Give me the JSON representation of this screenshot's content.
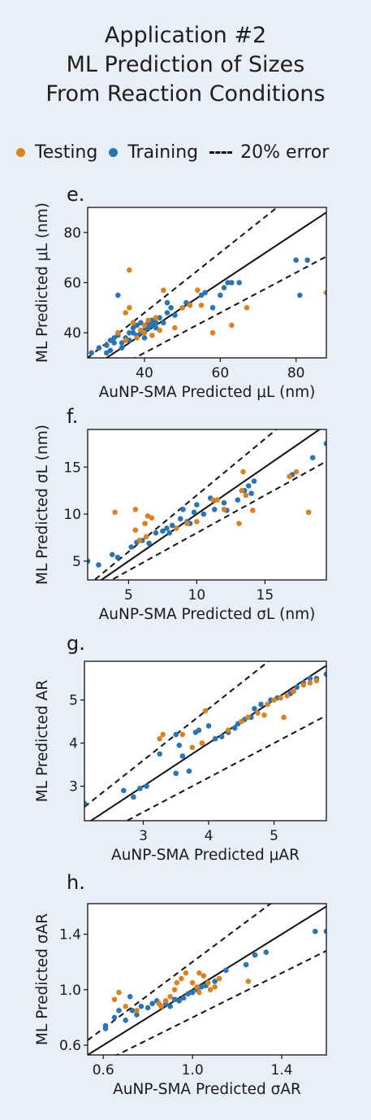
{
  "title": {
    "line1": "Application #2",
    "line2": "ML Prediction of Sizes",
    "line3": "From Reaction Conditions"
  },
  "legend": {
    "testing": "Testing",
    "training": "Training",
    "error": "20% error"
  },
  "colors": {
    "testing": "#d9821e",
    "training": "#2a74b4",
    "background": "#e8eff7"
  },
  "chart_data": [
    {
      "type": "scatter",
      "panel_label": "e.",
      "xlabel": "AuNP-SMA Predicted μL (nm)",
      "ylabel": "ML Predicted μL (nm)",
      "xlim": [
        25,
        88
      ],
      "ylim": [
        30,
        90
      ],
      "xticks": [
        40,
        60,
        80
      ],
      "yticks": [
        40,
        60,
        80
      ],
      "tick_labels_x": [
        "40",
        "60",
        "80"
      ],
      "tick_labels_y": [
        "40",
        "60",
        "80"
      ],
      "series": [
        {
          "name": "Testing",
          "points": [
            [
              36,
              65
            ],
            [
              35,
              48
            ],
            [
              36,
              50
            ],
            [
              37,
              44
            ],
            [
              33,
              40
            ],
            [
              35,
              37
            ],
            [
              38,
              38
            ],
            [
              39,
              41
            ],
            [
              40,
              40
            ],
            [
              40,
              43
            ],
            [
              41,
              45
            ],
            [
              42,
              39
            ],
            [
              44,
              41
            ],
            [
              45,
              57
            ],
            [
              48,
              42
            ],
            [
              50,
              50
            ],
            [
              52,
              51
            ],
            [
              54,
              57
            ],
            [
              55,
              51
            ],
            [
              58,
              40
            ],
            [
              63,
              43
            ],
            [
              67,
              50
            ],
            [
              88,
              56
            ],
            [
              43,
              46
            ]
          ]
        },
        {
          "name": "Training",
          "points": [
            [
              33,
              55
            ],
            [
              25,
              28
            ],
            [
              26,
              32
            ],
            [
              28,
              34
            ],
            [
              30,
              35
            ],
            [
              31,
              37
            ],
            [
              32,
              36
            ],
            [
              32,
              38
            ],
            [
              33,
              39
            ],
            [
              34,
              36
            ],
            [
              34,
              34
            ],
            [
              35,
              38
            ],
            [
              36,
              40
            ],
            [
              36,
              37
            ],
            [
              37,
              40
            ],
            [
              37,
              42
            ],
            [
              38,
              39
            ],
            [
              38,
              43
            ],
            [
              39,
              40
            ],
            [
              39,
              44
            ],
            [
              40,
              41
            ],
            [
              40,
              38
            ],
            [
              41,
              44
            ],
            [
              41,
              42
            ],
            [
              42,
              43
            ],
            [
              42,
              45
            ],
            [
              43,
              44
            ],
            [
              43,
              42
            ],
            [
              44,
              46
            ],
            [
              45,
              44
            ],
            [
              46,
              48
            ],
            [
              46,
              52
            ],
            [
              47,
              50
            ],
            [
              48,
              47
            ],
            [
              50,
              50
            ],
            [
              51,
              52
            ],
            [
              55,
              55
            ],
            [
              56,
              56
            ],
            [
              58,
              50
            ],
            [
              60,
              55
            ],
            [
              61,
              58
            ],
            [
              62,
              60
            ],
            [
              63,
              60
            ],
            [
              65,
              60
            ],
            [
              80,
              69
            ],
            [
              81,
              55
            ],
            [
              83,
              69
            ],
            [
              30,
              32
            ],
            [
              31,
              33
            ]
          ]
        }
      ],
      "lines": [
        "y=x",
        "y=1.2x",
        "y=0.8x"
      ]
    },
    {
      "type": "scatter",
      "panel_label": "f.",
      "xlabel": "AuNP-SMA Predicted σL (nm)",
      "ylabel": "ML Predicted σL (nm)",
      "xlim": [
        2,
        19.5
      ],
      "ylim": [
        3,
        19
      ],
      "xticks": [
        5,
        10,
        15
      ],
      "yticks": [
        5,
        10,
        15
      ],
      "tick_labels_x": [
        "5",
        "10",
        "15"
      ],
      "tick_labels_y": [
        "5",
        "10",
        "15"
      ],
      "series": [
        {
          "name": "Testing",
          "points": [
            [
              4,
              10.2
            ],
            [
              5.5,
              8.3
            ],
            [
              5.5,
              10.5
            ],
            [
              5.8,
              7.2
            ],
            [
              6.2,
              9.0
            ],
            [
              6.4,
              9.8
            ],
            [
              6.7,
              9.6
            ],
            [
              6.3,
              7.6
            ],
            [
              8.5,
              8.5
            ],
            [
              9.3,
              9.0
            ],
            [
              10.0,
              9.2
            ],
            [
              11.2,
              11.5
            ],
            [
              11.5,
              11.5
            ],
            [
              12.0,
              10.5
            ],
            [
              13.1,
              9.0
            ],
            [
              13.3,
              12.5
            ],
            [
              13.4,
              14.5
            ],
            [
              13.6,
              12.0
            ],
            [
              14.1,
              10.4
            ],
            [
              16.8,
              14.0
            ],
            [
              17.3,
              14.5
            ],
            [
              18.2,
              10.2
            ]
          ]
        },
        {
          "name": "Training",
          "points": [
            [
              2.0,
              5.0
            ],
            [
              2.8,
              4.6
            ],
            [
              3.8,
              5.7
            ],
            [
              4.2,
              5.4
            ],
            [
              5.2,
              6.5
            ],
            [
              5.6,
              7.0
            ],
            [
              6.0,
              7.2
            ],
            [
              6.5,
              6.9
            ],
            [
              7.0,
              8.0
            ],
            [
              7.5,
              8.2
            ],
            [
              7.8,
              8.5
            ],
            [
              8.0,
              8.0
            ],
            [
              8.2,
              8.8
            ],
            [
              8.8,
              9.5
            ],
            [
              9.0,
              10.5
            ],
            [
              9.3,
              9.2
            ],
            [
              9.5,
              9.0
            ],
            [
              9.8,
              10.2
            ],
            [
              10.0,
              11.0
            ],
            [
              10.5,
              10.0
            ],
            [
              11.0,
              11.7
            ],
            [
              11.3,
              10.5
            ],
            [
              12.0,
              11.2
            ],
            [
              12.2,
              10.4
            ],
            [
              13.0,
              11.5
            ],
            [
              13.5,
              12.5
            ],
            [
              13.8,
              13.0
            ],
            [
              14.0,
              12.2
            ],
            [
              14.2,
              13.5
            ],
            [
              17.0,
              14.2
            ],
            [
              18.5,
              16.0
            ],
            [
              19.5,
              17.5
            ]
          ]
        }
      ],
      "lines": [
        "y=x",
        "y=1.2x",
        "y=0.8x"
      ]
    },
    {
      "type": "scatter",
      "panel_label": "g.",
      "xlabel": "AuNP-SMA Predicted μAR",
      "ylabel": "ML Predicted AR",
      "xlim": [
        2.1,
        5.8
      ],
      "ylim": [
        2.2,
        5.9
      ],
      "xticks": [
        3,
        4,
        5
      ],
      "yticks": [
        3,
        4,
        5
      ],
      "tick_labels_x": [
        "3",
        "4",
        "5"
      ],
      "tick_labels_y": [
        "3",
        "4",
        "5"
      ],
      "series": [
        {
          "name": "Testing",
          "points": [
            [
              3.25,
              4.1
            ],
            [
              3.3,
              4.2
            ],
            [
              3.6,
              4.2
            ],
            [
              3.75,
              3.9
            ],
            [
              3.9,
              4.0
            ],
            [
              3.95,
              4.75
            ],
            [
              4.3,
              4.3
            ],
            [
              4.5,
              4.5
            ],
            [
              4.6,
              4.6
            ],
            [
              4.75,
              4.7
            ],
            [
              4.85,
              4.65
            ],
            [
              4.9,
              4.9
            ],
            [
              5.0,
              5.0
            ],
            [
              5.1,
              5.05
            ],
            [
              5.15,
              4.6
            ],
            [
              5.2,
              5.1
            ],
            [
              5.3,
              5.2
            ],
            [
              5.45,
              5.35
            ],
            [
              5.55,
              5.4
            ],
            [
              5.65,
              5.45
            ]
          ]
        },
        {
          "name": "Training",
          "points": [
            [
              2.1,
              2.6
            ],
            [
              2.7,
              2.9
            ],
            [
              2.85,
              2.75
            ],
            [
              2.95,
              2.95
            ],
            [
              3.05,
              3.0
            ],
            [
              3.25,
              3.75
            ],
            [
              3.5,
              4.2
            ],
            [
              3.55,
              3.95
            ],
            [
              3.6,
              3.7
            ],
            [
              3.7,
              3.35
            ],
            [
              3.8,
              4.25
            ],
            [
              3.85,
              4.3
            ],
            [
              3.9,
              4.0
            ],
            [
              3.5,
              3.3
            ],
            [
              4.0,
              4.4
            ],
            [
              4.1,
              4.1
            ],
            [
              4.2,
              4.15
            ],
            [
              4.3,
              4.25
            ],
            [
              4.4,
              4.35
            ],
            [
              4.45,
              4.45
            ],
            [
              4.55,
              4.55
            ],
            [
              4.65,
              4.6
            ],
            [
              4.7,
              4.8
            ],
            [
              4.8,
              4.9
            ],
            [
              4.95,
              5.0
            ],
            [
              5.05,
              5.05
            ],
            [
              5.25,
              5.15
            ],
            [
              5.35,
              5.3
            ],
            [
              5.45,
              5.4
            ],
            [
              5.55,
              5.5
            ],
            [
              5.65,
              5.5
            ],
            [
              5.8,
              5.6
            ]
          ]
        }
      ],
      "lines": [
        "y=x",
        "y=1.2x",
        "y=0.8x"
      ]
    },
    {
      "type": "scatter",
      "panel_label": "h.",
      "xlabel": "AuNP-SMA Predicted σAR",
      "ylabel": "ML Predicted σAR",
      "xlim": [
        0.53,
        1.6
      ],
      "ylim": [
        0.53,
        1.62
      ],
      "xticks": [
        0.6,
        1.0,
        1.4
      ],
      "yticks": [
        0.6,
        1.0,
        1.4
      ],
      "tick_labels_x": [
        "0.6",
        "1.0",
        "1.4"
      ],
      "tick_labels_y": [
        "0.6",
        "1.0",
        "1.4"
      ],
      "series": [
        {
          "name": "Testing",
          "points": [
            [
              0.65,
              0.93
            ],
            [
              0.67,
              0.98
            ],
            [
              0.7,
              0.88
            ],
            [
              0.75,
              0.85
            ],
            [
              0.85,
              0.9
            ],
            [
              0.86,
              0.88
            ],
            [
              0.9,
              0.95
            ],
            [
              0.92,
              1.0
            ],
            [
              0.93,
              1.05
            ],
            [
              0.95,
              1.08
            ],
            [
              0.97,
              1.12
            ],
            [
              1.0,
              1.05
            ],
            [
              1.02,
              1.02
            ],
            [
              1.03,
              1.12
            ],
            [
              1.05,
              1.1
            ],
            [
              1.07,
              1.05
            ],
            [
              1.08,
              1.0
            ],
            [
              1.1,
              1.02
            ],
            [
              1.12,
              1.08
            ],
            [
              1.25,
              1.06
            ],
            [
              1.03,
              0.98
            ],
            [
              0.88,
              0.92
            ]
          ]
        },
        {
          "name": "Training",
          "points": [
            [
              0.61,
              0.72
            ],
            [
              0.61,
              0.74
            ],
            [
              0.65,
              0.8
            ],
            [
              0.67,
              0.85
            ],
            [
              0.7,
              0.78
            ],
            [
              0.73,
              0.85
            ],
            [
              0.75,
              0.82
            ],
            [
              0.77,
              0.88
            ],
            [
              0.8,
              0.87
            ],
            [
              0.82,
              0.9
            ],
            [
              0.84,
              0.92
            ],
            [
              0.86,
              0.88
            ],
            [
              0.88,
              0.9
            ],
            [
              0.9,
              0.88
            ],
            [
              0.92,
              0.93
            ],
            [
              0.94,
              0.92
            ],
            [
              0.96,
              0.94
            ],
            [
              0.98,
              0.97
            ],
            [
              1.0,
              0.98
            ],
            [
              1.02,
              1.0
            ],
            [
              1.04,
              1.02
            ],
            [
              1.06,
              1.03
            ],
            [
              1.1,
              1.06
            ],
            [
              1.15,
              1.14
            ],
            [
              1.24,
              1.18
            ],
            [
              1.28,
              1.25
            ],
            [
              1.33,
              1.27
            ],
            [
              1.55,
              1.42
            ],
            [
              1.6,
              1.42
            ],
            [
              0.72,
              0.95
            ]
          ]
        }
      ],
      "lines": [
        "y=x",
        "y=1.2x",
        "y=0.8x"
      ]
    }
  ]
}
